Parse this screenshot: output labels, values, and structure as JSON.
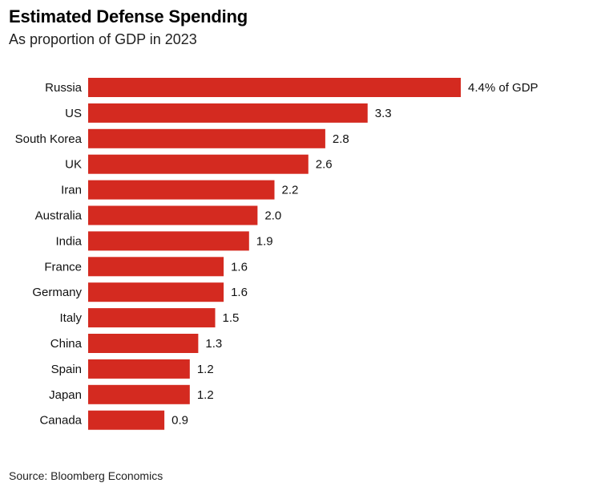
{
  "header": {
    "title": "Estimated Defense Spending",
    "subtitle": "As proportion of GDP in 2023"
  },
  "footer": {
    "source": "Source: Bloomberg Economics"
  },
  "colors": {
    "bar": "#d42a20"
  },
  "chart_data": {
    "type": "bar",
    "orientation": "horizontal",
    "title": "Estimated Defense Spending",
    "subtitle": "As proportion of GDP in 2023",
    "unit": "% of GDP",
    "categories": [
      "Russia",
      "US",
      "South Korea",
      "UK",
      "Iran",
      "Australia",
      "India",
      "France",
      "Germany",
      "Italy",
      "China",
      "Spain",
      "Japan",
      "Canada"
    ],
    "values": [
      4.4,
      3.3,
      2.8,
      2.6,
      2.2,
      2.0,
      1.9,
      1.6,
      1.6,
      1.5,
      1.3,
      1.2,
      1.2,
      0.9
    ],
    "value_labels": [
      "4.4% of GDP",
      "3.3",
      "2.8",
      "2.6",
      "2.2",
      "2.0",
      "1.9",
      "1.6",
      "1.6",
      "1.5",
      "1.3",
      "1.2",
      "1.2",
      "0.9"
    ],
    "xlim": [
      0,
      4.4
    ],
    "grid": false,
    "legend": "none"
  }
}
